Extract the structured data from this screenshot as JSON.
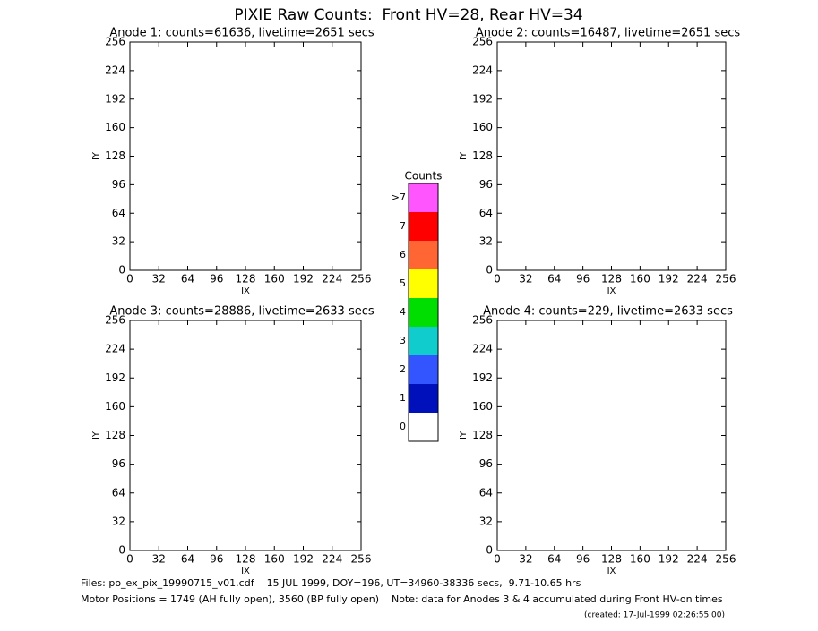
{
  "title": "PIXIE Raw Counts:  Front HV=28, Rear HV=34",
  "chart_data": [
    {
      "type": "heatmap",
      "title": "Anode 1: counts=61636, livetime=2651 secs",
      "xlabel": "IX",
      "ylabel": "IY",
      "xlim": [
        0,
        256
      ],
      "ylim": [
        0,
        256
      ],
      "xticks": [
        0,
        32,
        64,
        96,
        128,
        160,
        192,
        224,
        256
      ],
      "yticks": [
        0,
        32,
        64,
        96,
        128,
        160,
        192,
        224,
        256
      ]
    },
    {
      "type": "heatmap",
      "title": "Anode 2: counts=16487, livetime=2651 secs",
      "xlabel": "IX",
      "ylabel": "IY",
      "xlim": [
        0,
        256
      ],
      "ylim": [
        0,
        256
      ],
      "xticks": [
        0,
        32,
        64,
        96,
        128,
        160,
        192,
        224,
        256
      ],
      "yticks": [
        0,
        32,
        64,
        96,
        128,
        160,
        192,
        224,
        256
      ]
    },
    {
      "type": "heatmap",
      "title": "Anode 3: counts=28886, livetime=2633 secs",
      "xlabel": "IX",
      "ylabel": "IY",
      "xlim": [
        0,
        256
      ],
      "ylim": [
        0,
        256
      ],
      "xticks": [
        0,
        32,
        64,
        96,
        128,
        160,
        192,
        224,
        256
      ],
      "yticks": [
        0,
        32,
        64,
        96,
        128,
        160,
        192,
        224,
        256
      ]
    },
    {
      "type": "heatmap",
      "title": "Anode 4: counts=229, livetime=2633 secs",
      "xlabel": "IX",
      "ylabel": "IY",
      "xlim": [
        0,
        256
      ],
      "ylim": [
        0,
        256
      ],
      "xticks": [
        0,
        32,
        64,
        96,
        128,
        160,
        192,
        224,
        256
      ],
      "yticks": [
        0,
        32,
        64,
        96,
        128,
        160,
        192,
        224,
        256
      ]
    }
  ],
  "colorbar": {
    "title": "Counts",
    "categories": [
      ">7",
      "7",
      "6",
      "5",
      "4",
      "3",
      "2",
      "1",
      "0"
    ],
    "colors": [
      "#ff55ff",
      "#ff0000",
      "#ff6633",
      "#ffff00",
      "#00dd00",
      "#11cccc",
      "#3355ff",
      "#0011bb",
      "#ffffff"
    ]
  },
  "footer": [
    "Files: po_ex_pix_19990715_v01.cdf    15 JUL 1999, DOY=196, UT=34960-38336 secs,  9.71-10.65 hrs",
    "Motor Positions = 1749 (AH fully open), 3560 (BP fully open)    Note: data for Anodes 3 & 4 accumulated during Front HV-on times",
    "(created: 17-Jul-1999 02:26:55.00)"
  ]
}
